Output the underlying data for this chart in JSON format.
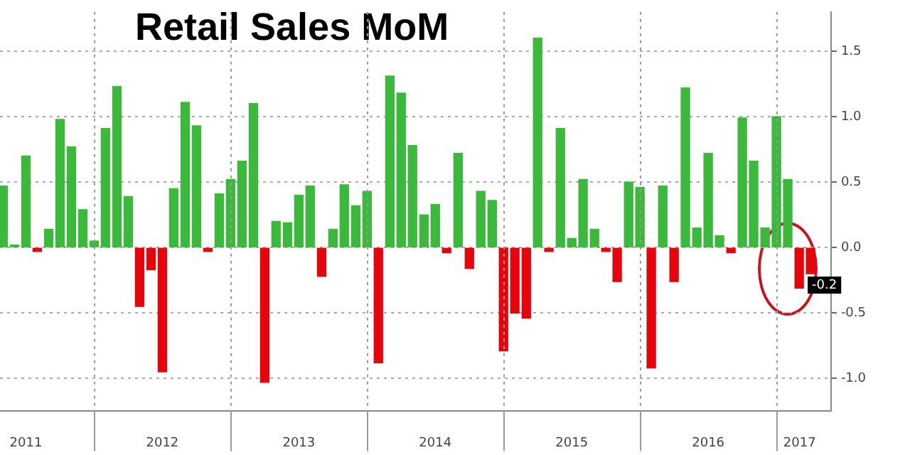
{
  "chart_data": {
    "type": "bar",
    "title": "Retail Sales MoM",
    "x": [
      2011.333,
      2011.417,
      2011.5,
      2011.583,
      2011.667,
      2011.75,
      2011.833,
      2011.917,
      2012.0,
      2012.083,
      2012.167,
      2012.25,
      2012.333,
      2012.417,
      2012.5,
      2012.583,
      2012.667,
      2012.75,
      2012.833,
      2012.917,
      2013.0,
      2013.083,
      2013.167,
      2013.25,
      2013.333,
      2013.417,
      2013.5,
      2013.583,
      2013.667,
      2013.75,
      2013.833,
      2013.917,
      2014.0,
      2014.083,
      2014.167,
      2014.25,
      2014.333,
      2014.417,
      2014.5,
      2014.583,
      2014.667,
      2014.75,
      2014.833,
      2014.917,
      2015.0,
      2015.083,
      2015.167,
      2015.25,
      2015.333,
      2015.417,
      2015.5,
      2015.583,
      2015.667,
      2015.75,
      2015.833,
      2015.917,
      2016.0,
      2016.083,
      2016.167,
      2016.25,
      2016.333,
      2016.417,
      2016.5,
      2016.583,
      2016.667,
      2016.75,
      2016.833,
      2016.917,
      2017.0,
      2017.083,
      2017.167,
      2017.25
    ],
    "values": [
      0.47,
      0.02,
      0.7,
      -0.03,
      0.14,
      0.98,
      0.77,
      0.29,
      0.05,
      0.91,
      1.23,
      0.39,
      -0.45,
      -0.17,
      -0.95,
      0.45,
      1.11,
      0.93,
      -0.03,
      0.41,
      0.52,
      0.66,
      1.1,
      -1.03,
      0.2,
      0.19,
      0.4,
      0.47,
      -0.22,
      0.14,
      0.48,
      0.32,
      0.43,
      -0.88,
      1.31,
      1.18,
      0.78,
      0.25,
      0.33,
      -0.04,
      0.72,
      -0.16,
      0.43,
      0.36,
      -0.79,
      -0.5,
      -0.54,
      1.6,
      -0.03,
      0.91,
      0.07,
      0.52,
      0.14,
      -0.03,
      -0.26,
      0.5,
      0.46,
      -0.92,
      0.47,
      -0.26,
      1.22,
      0.15,
      0.72,
      0.09,
      -0.04,
      0.99,
      0.66,
      0.15,
      1.0,
      0.52,
      -0.31,
      -0.2
    ],
    "colors": [
      "#3cb93c",
      "#3cb93c",
      "#3cb93c",
      "#e3070d",
      "#3cb93c",
      "#3cb93c",
      "#3cb93c",
      "#3cb93c",
      "#3cb93c",
      "#3cb93c",
      "#3cb93c",
      "#3cb93c",
      "#e3070d",
      "#e3070d",
      "#e3070d",
      "#3cb93c",
      "#3cb93c",
      "#3cb93c",
      "#e3070d",
      "#3cb93c",
      "#3cb93c",
      "#3cb93c",
      "#3cb93c",
      "#e3070d",
      "#3cb93c",
      "#3cb93c",
      "#3cb93c",
      "#3cb93c",
      "#e3070d",
      "#3cb93c",
      "#3cb93c",
      "#3cb93c",
      "#3cb93c",
      "#e3070d",
      "#3cb93c",
      "#3cb93c",
      "#3cb93c",
      "#3cb93c",
      "#3cb93c",
      "#e3070d",
      "#3cb93c",
      "#e3070d",
      "#3cb93c",
      "#3cb93c",
      "#e3070d",
      "#e3070d",
      "#e3070d",
      "#3cb93c",
      "#e3070d",
      "#3cb93c",
      "#3cb93c",
      "#3cb93c",
      "#3cb93c",
      "#e3070d",
      "#e3070d",
      "#3cb93c",
      "#3cb93c",
      "#e3070d",
      "#3cb93c",
      "#e3070d",
      "#3cb93c",
      "#3cb93c",
      "#3cb93c",
      "#3cb93c",
      "#e3070d",
      "#3cb93c",
      "#3cb93c",
      "#3cb93c",
      "#3cb93c",
      "#3cb93c",
      "#e3070d",
      "#e3070d"
    ],
    "value_labels": [
      null,
      null,
      null,
      null,
      null,
      null,
      null,
      null,
      null,
      null,
      null,
      null,
      null,
      null,
      null,
      null,
      null,
      null,
      null,
      null,
      null,
      null,
      null,
      null,
      null,
      null,
      null,
      null,
      null,
      null,
      null,
      null,
      null,
      null,
      null,
      null,
      null,
      null,
      null,
      null,
      null,
      null,
      null,
      null,
      null,
      null,
      null,
      null,
      null,
      null,
      null,
      null,
      null,
      null,
      null,
      null,
      null,
      null,
      null,
      null,
      null,
      null,
      null,
      null,
      null,
      null,
      null,
      null,
      null,
      null,
      null,
      "-0.2"
    ],
    "xlim": [
      2011.31,
      2017.4
    ],
    "xticks": [
      {
        "value": 2011.5,
        "label": "2011"
      },
      {
        "value": 2012,
        "label": null
      },
      {
        "value": 2012.5,
        "label": "2012"
      },
      {
        "value": 2013,
        "label": null
      },
      {
        "value": 2013.5,
        "label": "2013"
      },
      {
        "value": 2014,
        "label": null
      },
      {
        "value": 2014.5,
        "label": "2014"
      },
      {
        "value": 2015,
        "label": null
      },
      {
        "value": 2015.5,
        "label": "2015"
      },
      {
        "value": 2016,
        "label": null
      },
      {
        "value": 2016.5,
        "label": "2016"
      },
      {
        "value": 2017,
        "label": null
      },
      {
        "value": 2017.17,
        "label": "2017"
      }
    ],
    "ylim": [
      -1.25,
      1.8
    ],
    "yticks": [
      {
        "value": -1,
        "label": "-1.0"
      },
      -0.5,
      {
        "value": 0,
        "label": "0.0"
      },
      0.5,
      {
        "value": 1,
        "label": "1.0"
      },
      1.5
    ],
    "grid": true
  }
}
